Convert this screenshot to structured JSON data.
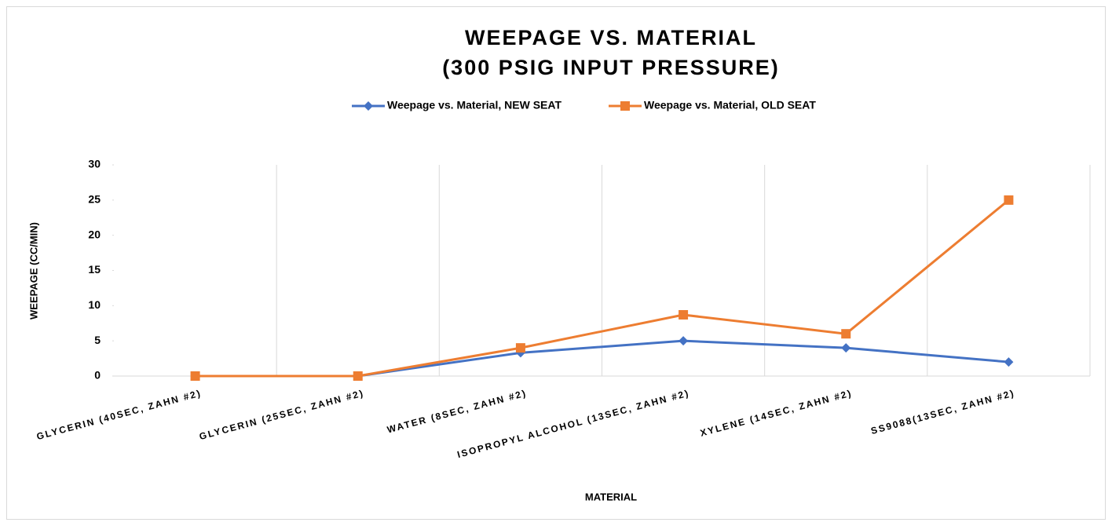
{
  "chart_data": {
    "type": "line",
    "title": "WEEPAGE VS. MATERIAL",
    "subtitle": "(300 PSIG INPUT PRESSURE)",
    "x_label": "MATERIAL",
    "y_label": "WEEPAGE (CC/MIN)",
    "categories": [
      "GLYCERIN (40SEC, ZAHN #2)",
      "GLYCERIN (25SEC, ZAHN #2)",
      "WATER (8SEC, ZAHN #2)",
      "ISOPROPYL ALCOHOL (13SEC, ZAHN #2)",
      "XYLENE (14SEC, ZAHN #2)",
      "SS9088(13SEC, ZAHN #2)"
    ],
    "series": [
      {
        "name": "Weepage vs. Material, NEW SEAT",
        "color": "#4472c4",
        "marker": "diamond",
        "values": [
          0,
          0,
          3.3,
          5,
          4,
          2
        ]
      },
      {
        "name": "Weepage vs. Material, OLD SEAT",
        "color": "#ed7d31",
        "marker": "square",
        "values": [
          0,
          0,
          4,
          8.7,
          6,
          25
        ]
      }
    ],
    "ylim": [
      0,
      30
    ],
    "yticks": [
      0,
      5,
      10,
      15,
      20,
      25,
      30
    ],
    "category_grid": true,
    "legend": "top"
  }
}
